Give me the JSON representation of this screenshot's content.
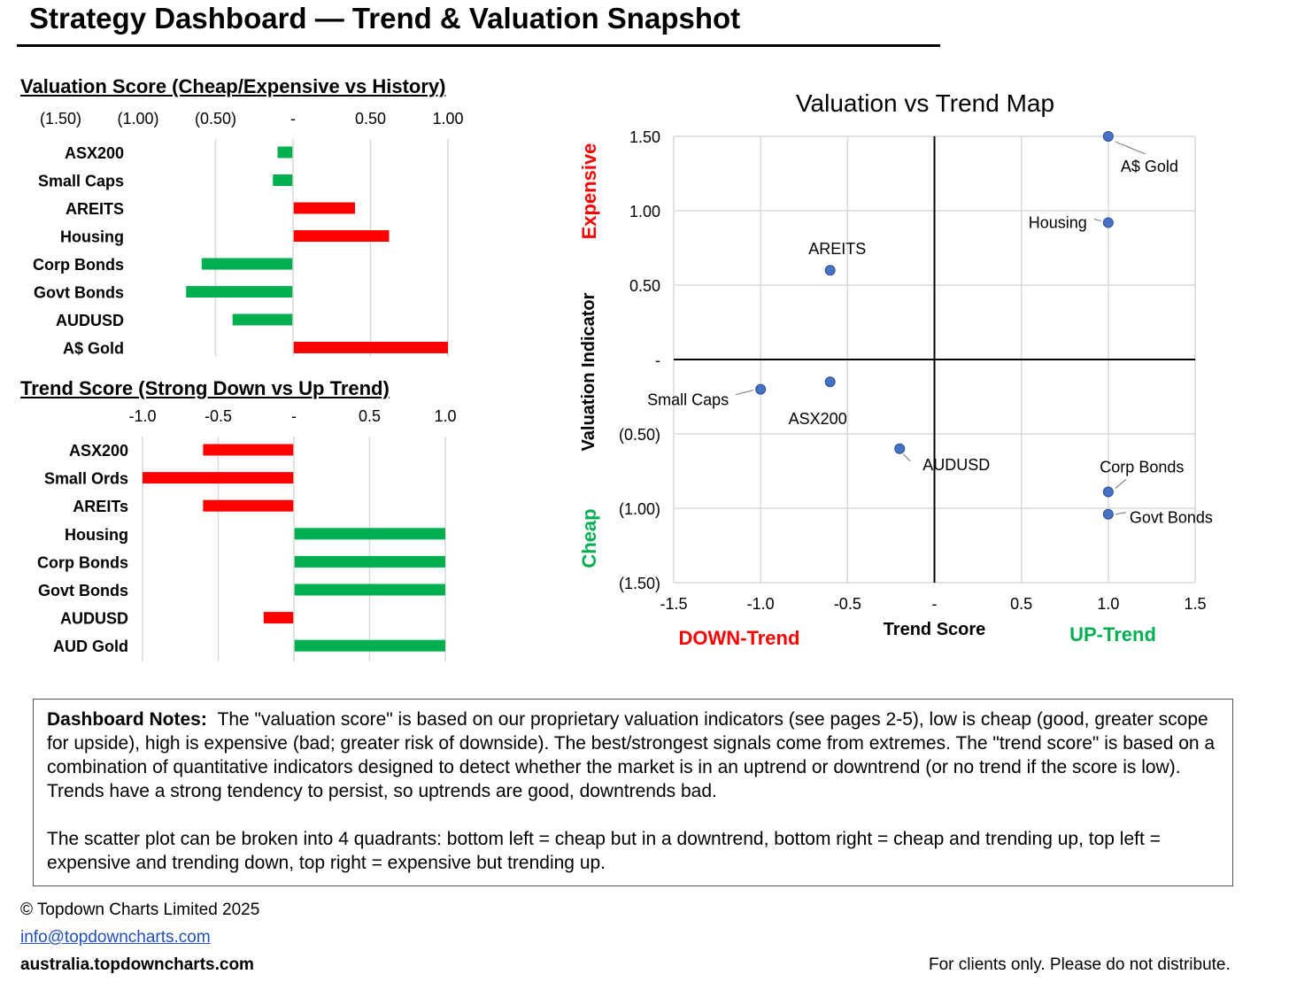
{
  "header": {
    "title": "Strategy Dashboard — Trend & Valuation Snapshot"
  },
  "colors": {
    "positive": "#00b050",
    "negative": "#ff0000",
    "marker": "#4472c4",
    "grid": "#d9d9d9"
  },
  "chart_data": [
    {
      "type": "bar",
      "orientation": "horizontal",
      "title": "Valuation Score (Cheap/Expensive vs History)",
      "categories": [
        "ASX200",
        "Small Caps",
        "AREITS",
        "Housing",
        "Corp Bonds",
        "Govt Bonds",
        "AUDUSD",
        "A$ Gold"
      ],
      "values": [
        -0.1,
        -0.13,
        0.4,
        0.62,
        -0.59,
        -0.69,
        -0.39,
        1.0
      ],
      "xlim": [
        -1.0,
        1.0
      ],
      "xticks": [
        -1.5,
        -1.0,
        -0.5,
        0,
        0.5,
        1.0,
        1.5
      ],
      "xtick_labels": [
        "(1.50)",
        "(1.00)",
        "(0.50)",
        "-",
        "0.50",
        "1.00",
        "1.50"
      ],
      "color_rule": "negative values green, positive values red",
      "grid": true
    },
    {
      "type": "bar",
      "orientation": "horizontal",
      "title": "Trend Score (Strong Down vs Up Trend)",
      "categories": [
        "ASX200",
        "Small Ords",
        "AREITs",
        "Housing",
        "Corp Bonds",
        "Govt Bonds",
        "AUDUSD",
        "AUD Gold"
      ],
      "values": [
        -0.6,
        -1.0,
        -0.6,
        1.0,
        1.0,
        1.0,
        -0.2,
        1.0
      ],
      "xlim": [
        -1.0,
        1.0
      ],
      "xticks": [
        -1.0,
        -0.5,
        0,
        0.5,
        1.0
      ],
      "xtick_labels": [
        "-1.0",
        "-0.5",
        "-",
        "0.5",
        "1.0"
      ],
      "color_rule": "negative values red, positive values green",
      "grid": true
    },
    {
      "type": "scatter",
      "title": "Valuation vs Trend Map",
      "xlabel": "Trend Score",
      "ylabel": "Valuation Indicator",
      "xlim": [
        -1.5,
        1.5
      ],
      "ylim": [
        -1.5,
        1.5
      ],
      "xticks": [
        -1.5,
        -1.0,
        -0.5,
        0,
        0.5,
        1.0,
        1.5
      ],
      "xtick_labels": [
        "-1.5",
        "-1.0",
        "-0.5",
        "-",
        "0.5",
        "1.0",
        "1.5"
      ],
      "yticks": [
        1.5,
        1.0,
        0.5,
        0,
        -0.5,
        -1.0,
        -1.5
      ],
      "ytick_labels": [
        "1.50",
        "1.00",
        "0.50",
        "-",
        "(0.50)",
        "(1.00)",
        "(1.50)"
      ],
      "grid": true,
      "quadrant_labels": {
        "top": "Expensive",
        "bottom": "Cheap",
        "left": "DOWN-Trend",
        "right": "UP-Trend"
      },
      "points": [
        {
          "label": "A$ Gold",
          "x": 1.0,
          "y": 1.5
        },
        {
          "label": "Housing",
          "x": 1.0,
          "y": 0.92
        },
        {
          "label": "AREITS",
          "x": -0.6,
          "y": 0.6
        },
        {
          "label": "Small Caps",
          "x": -1.0,
          "y": -0.2
        },
        {
          "label": "ASX200",
          "x": -0.6,
          "y": -0.15
        },
        {
          "label": "AUDUSD",
          "x": -0.2,
          "y": -0.6
        },
        {
          "label": "Corp Bonds",
          "x": 1.0,
          "y": -0.89
        },
        {
          "label": "Govt Bonds",
          "x": 1.0,
          "y": -1.04
        }
      ]
    }
  ],
  "notes": {
    "heading": "Dashboard Notes:",
    "paragraph1": "The \"valuation score\" is based on our proprietary valuation indicators (see pages 2-5), low is cheap (good, greater scope for upside), high is expensive (bad; greater risk of downside). The best/strongest signals come from extremes. The \"trend score\" is based on a combination of quantitative indicators designed to detect whether the market is in an uptrend or downtrend (or no trend if the score is low). Trends have a strong tendency to persist, so uptrends are good, downtrends bad.",
    "paragraph2": "The scatter plot can be broken into 4 quadrants: bottom left = cheap but in a downtrend, bottom right = cheap and trending up, top left = expensive and trending down, top right = expensive but trending up."
  },
  "footer": {
    "copyright": "© Topdown Charts Limited 2025",
    "email": "info@topdowncharts.com",
    "website": "australia.topdowncharts.com",
    "disclaimer": "For clients only.  Please do not distribute."
  }
}
